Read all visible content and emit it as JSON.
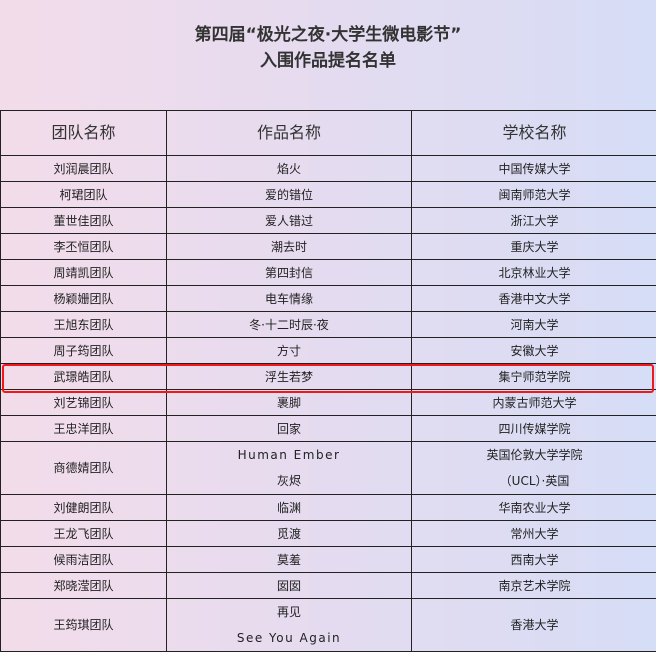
{
  "title": {
    "line1": "第四届“极光之夜·大学生微电影节”",
    "line2": "入围作品提名名单"
  },
  "table": {
    "headers": [
      "团队名称",
      "作品名称",
      "学校名称"
    ],
    "rows": [
      {
        "team": "刘润晨团队",
        "work": [
          "焰火"
        ],
        "school": [
          "中国传媒大学"
        ]
      },
      {
        "team": "柯珺团队",
        "work": [
          "爱的错位"
        ],
        "school": [
          "闽南师范大学"
        ]
      },
      {
        "team": "董世佳团队",
        "work": [
          "爱人错过"
        ],
        "school": [
          "浙江大学"
        ]
      },
      {
        "team": "李丕恒团队",
        "work": [
          "潮去时"
        ],
        "school": [
          "重庆大学"
        ]
      },
      {
        "team": "周靖凯团队",
        "work": [
          "第四封信"
        ],
        "school": [
          "北京林业大学"
        ]
      },
      {
        "team": "杨颖姗团队",
        "work": [
          "电车情缘"
        ],
        "school": [
          "香港中文大学"
        ]
      },
      {
        "team": "王旭东团队",
        "work": [
          "冬·十二时辰·夜"
        ],
        "school": [
          "河南大学"
        ]
      },
      {
        "team": "周子筠团队",
        "work": [
          "方寸"
        ],
        "school": [
          "安徽大学"
        ]
      },
      {
        "team": "武璟皓团队",
        "work": [
          "浮生若梦"
        ],
        "school": [
          "集宁师范学院"
        ],
        "highlighted": true
      },
      {
        "team": "刘艺锦团队",
        "work": [
          "裹脚"
        ],
        "school": [
          "内蒙古师范大学"
        ]
      },
      {
        "team": "王忠洋团队",
        "work": [
          "回家"
        ],
        "school": [
          "四川传媒学院"
        ]
      },
      {
        "team": "商德婧团队",
        "work": [
          "Human Ember",
          "灰烬"
        ],
        "school": [
          "英国伦敦大学学院",
          "（UCL）·英国"
        ]
      },
      {
        "team": "刘健朗团队",
        "work": [
          "临渊"
        ],
        "school": [
          "华南农业大学"
        ]
      },
      {
        "team": "王龙飞团队",
        "work": [
          "觅渡"
        ],
        "school": [
          "常州大学"
        ]
      },
      {
        "team": "候雨洁团队",
        "work": [
          "莫羞"
        ],
        "school": [
          "西南大学"
        ]
      },
      {
        "team": "郑晓滢团队",
        "work": [
          "囡囡"
        ],
        "school": [
          "南京艺术学院"
        ]
      },
      {
        "team": "王筠琪团队",
        "work": [
          "再见",
          "See You Again"
        ],
        "school": [
          "香港大学"
        ]
      }
    ]
  },
  "highlight_color": "#f01818"
}
